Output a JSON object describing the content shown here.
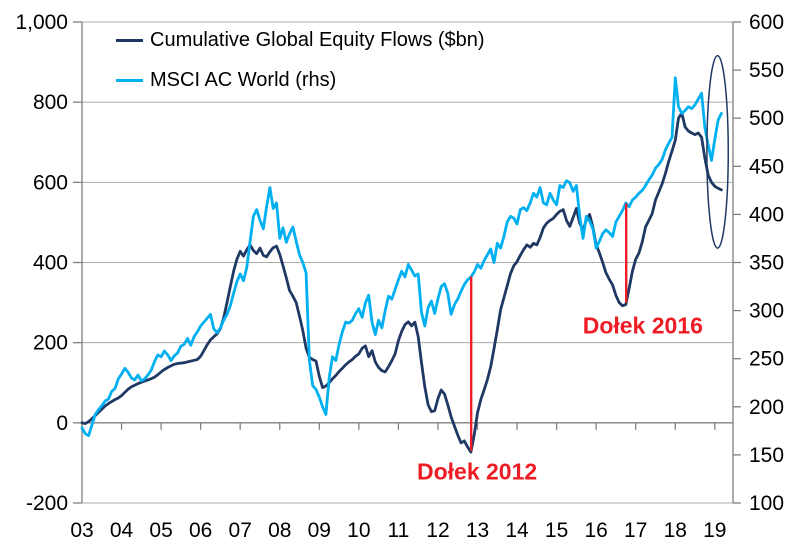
{
  "legend": {
    "series1_label": "Cumulative Global Equity Flows ($bn)",
    "series2_label": "MSCI AC World (rhs)"
  },
  "colors": {
    "flows": "#1F3864",
    "msci": "#00B0F0",
    "annotation": "#EE1C25",
    "axis": "#808080",
    "grid": "#ABABAB",
    "text": "#000000",
    "ellipse": "#1F3864"
  },
  "chart_data": {
    "type": "line",
    "x_start_year": 2003,
    "x_step_months": 1,
    "x_axis": {
      "tick_labels": [
        "03",
        "04",
        "05",
        "06",
        "07",
        "08",
        "09",
        "10",
        "11",
        "12",
        "13",
        "14",
        "15",
        "16",
        "17",
        "18",
        "19"
      ],
      "tick_years": [
        2003,
        2004,
        2005,
        2006,
        2007,
        2008,
        2009,
        2010,
        2011,
        2012,
        2013,
        2014,
        2015,
        2016,
        2017,
        2018,
        2019
      ]
    },
    "left_axis": {
      "min": -200,
      "max": 1000,
      "tick_interval": 200,
      "tick_labels": [
        "1,000",
        "800",
        "600",
        "400",
        "200",
        "0",
        "-200"
      ],
      "tick_values": [
        1000,
        800,
        600,
        400,
        200,
        0,
        -200
      ]
    },
    "right_axis": {
      "min": 100,
      "max": 600,
      "tick_interval": 50,
      "tick_labels": [
        "600",
        "550",
        "500",
        "450",
        "400",
        "350",
        "300",
        "250",
        "200",
        "150",
        "100"
      ],
      "tick_values": [
        600,
        550,
        500,
        450,
        400,
        350,
        300,
        250,
        200,
        150,
        100
      ]
    },
    "series": [
      {
        "name": "Cumulative Global Equity Flows ($bn)",
        "axis": "left",
        "color_key": "flows",
        "values": [
          0,
          -2,
          3,
          10,
          18,
          26,
          34,
          42,
          48,
          53,
          58,
          62,
          68,
          76,
          84,
          90,
          94,
          98,
          101,
          104,
          107,
          110,
          114,
          120,
          127,
          133,
          138,
          142,
          146,
          148,
          149,
          150,
          152,
          154,
          156,
          158,
          166,
          180,
          195,
          207,
          215,
          222,
          235,
          262,
          300,
          340,
          378,
          408,
          428,
          416,
          432,
          444,
          430,
          422,
          436,
          418,
          414,
          427,
          437,
          441,
          420,
          392,
          362,
          330,
          316,
          300,
          266,
          230,
          186,
          163,
          158,
          154,
          116,
          88,
          92,
          100,
          110,
          118,
          128,
          136,
          145,
          152,
          158,
          166,
          172,
          186,
          192,
          165,
          180,
          152,
          138,
          130,
          127,
          140,
          155,
          172,
          205,
          228,
          245,
          252,
          242,
          251,
          215,
          150,
          90,
          45,
          28,
          30,
          60,
          82,
          72,
          45,
          15,
          -8,
          -30,
          -50,
          -45,
          -60,
          -73,
          -30,
          25,
          58,
          82,
          108,
          140,
          185,
          232,
          282,
          312,
          342,
          372,
          392,
          402,
          418,
          432,
          444,
          438,
          448,
          444,
          462,
          486,
          498,
          505,
          510,
          520,
          528,
          532,
          505,
          490,
          512,
          535,
          498,
          480,
          506,
          520,
          488,
          445,
          424,
          400,
          374,
          358,
          344,
          318,
          300,
          292,
          295,
          335,
          378,
          408,
          424,
          452,
          489,
          505,
          522,
          556,
          576,
          596,
          622,
          652,
          678,
          705,
          760,
          773,
          738,
          728,
          723,
          719,
          723,
          712,
          660,
          618,
          600,
          590,
          585,
          581
        ]
      },
      {
        "name": "MSCI AC World (rhs)",
        "axis": "right",
        "color_key": "msci",
        "values": [
          178,
          172,
          170,
          181,
          192,
          197,
          201,
          206,
          208,
          216,
          219,
          229,
          234,
          240,
          236,
          230,
          228,
          233,
          227,
          229,
          233,
          238,
          247,
          254,
          252,
          258,
          254,
          248,
          253,
          256,
          263,
          265,
          271,
          264,
          273,
          278,
          284,
          288,
          292,
          296,
          281,
          277,
          282,
          290,
          296,
          305,
          318,
          330,
          338,
          331,
          345,
          372,
          398,
          405,
          394,
          385,
          408,
          428,
          406,
          412,
          375,
          386,
          371,
          380,
          387,
          372,
          358,
          350,
          339,
          248,
          222,
          218,
          210,
          200,
          192,
          230,
          252,
          248,
          265,
          278,
          288,
          287,
          290,
          297,
          302,
          293,
          308,
          316,
          288,
          275,
          290,
          282,
          300,
          315,
          312,
          322,
          332,
          341,
          335,
          348,
          342,
          336,
          338,
          298,
          284,
          303,
          310,
          297,
          312,
          325,
          328,
          318,
          296,
          306,
          312,
          320,
          327,
          332,
          335,
          340,
          348,
          344,
          352,
          358,
          364,
          350,
          370,
          365,
          377,
          392,
          398,
          396,
          390,
          405,
          407,
          404,
          412,
          422,
          418,
          428,
          412,
          410,
          422,
          415,
          410,
          430,
          428,
          435,
          433,
          424,
          430,
          398,
          375,
          398,
          393,
          385,
          365,
          372,
          380,
          384,
          381,
          377,
          392,
          398,
          404,
          412,
          408,
          415,
          418,
          422,
          425,
          430,
          436,
          441,
          448,
          452,
          457,
          467,
          474,
          480,
          542,
          512,
          505,
          508,
          512,
          510,
          514,
          520,
          526,
          490,
          472,
          456,
          478,
          498,
          505
        ]
      }
    ],
    "annotations": {
      "dolek_2012": {
        "label": "Dołek 2012",
        "line_year": 2012.84,
        "label_year": 2012.99,
        "label_value_left": -123
      },
      "dolek_2016": {
        "label": "Dołek 2016",
        "line_year": 2016.76,
        "label_year": 2017.18,
        "label_value_left": 241
      },
      "ellipse": {
        "center_year": 2019.07,
        "center_value_right": 465,
        "rx_years": 0.27,
        "ry_value_right": 100
      }
    },
    "legend_position": "top-left",
    "grid": "horizontal-only"
  }
}
